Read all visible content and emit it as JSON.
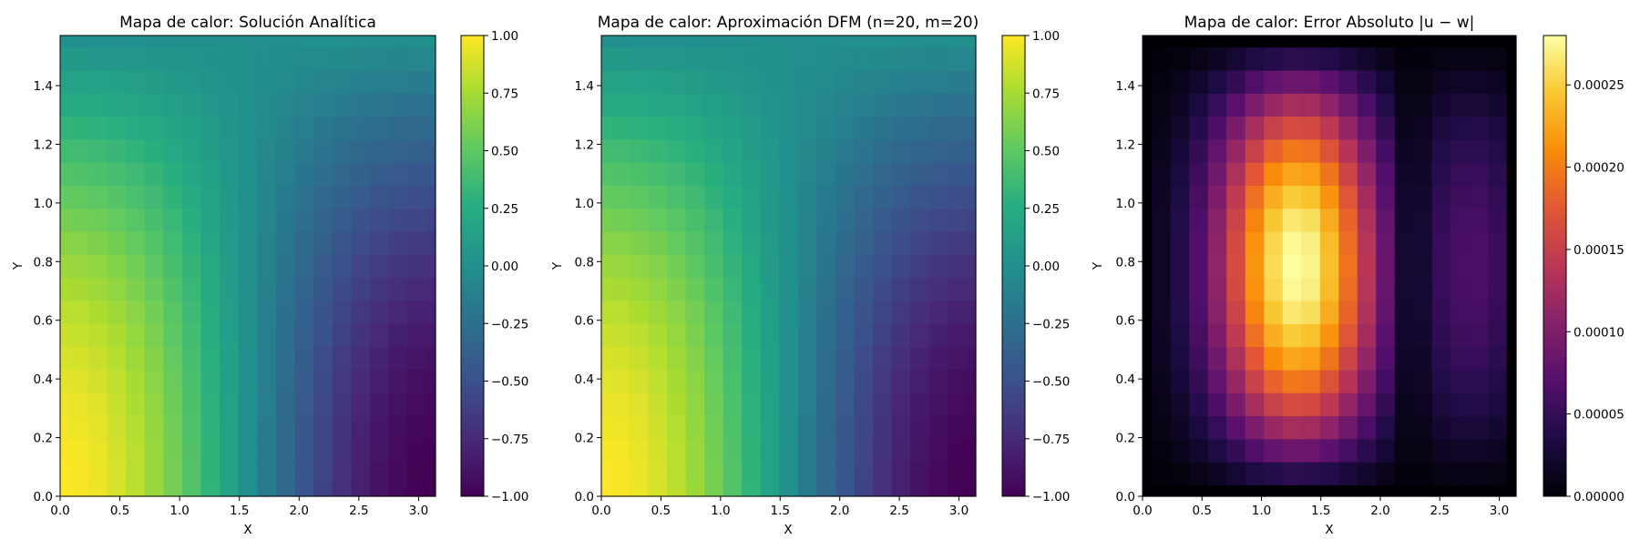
{
  "chart_data": [
    {
      "type": "heatmap",
      "title": "Mapa de calor: Solución Analítica",
      "xlabel": "X",
      "ylabel": "Y",
      "xlim": [
        0,
        3.14159
      ],
      "ylim": [
        0,
        1.5708
      ],
      "x_ticks": [
        "0.0",
        "0.5",
        "1.0",
        "1.5",
        "2.0",
        "2.5",
        "3.0"
      ],
      "y_ticks": [
        "0.0",
        "0.2",
        "0.4",
        "0.6",
        "0.8",
        "1.0",
        "1.2",
        "1.4"
      ],
      "grid_n": 20,
      "grid_m": 20,
      "colormap": "viridis",
      "colorbar": {
        "min": -1.0,
        "max": 1.0,
        "ticks": [
          "-1.00",
          "-0.75",
          "-0.50",
          "-0.25",
          "0.00",
          "0.25",
          "0.50",
          "0.75",
          "1.00"
        ]
      },
      "function": "cos(x)*cos(y)"
    },
    {
      "type": "heatmap",
      "title": "Mapa de calor: Aproximación DFM (n=20, m=20)",
      "xlabel": "X",
      "ylabel": "Y",
      "xlim": [
        0,
        3.14159
      ],
      "ylim": [
        0,
        1.5708
      ],
      "x_ticks": [
        "0.0",
        "0.5",
        "1.0",
        "1.5",
        "2.0",
        "2.5",
        "3.0"
      ],
      "y_ticks": [
        "0.0",
        "0.2",
        "0.4",
        "0.6",
        "0.8",
        "1.0",
        "1.2",
        "1.4"
      ],
      "grid_n": 20,
      "grid_m": 20,
      "colormap": "viridis",
      "colorbar": {
        "min": -1.0,
        "max": 1.0,
        "ticks": [
          "-1.00",
          "-0.75",
          "-0.50",
          "-0.25",
          "0.00",
          "0.25",
          "0.50",
          "0.75",
          "1.00"
        ]
      },
      "function": "cos(x)*cos(y)"
    },
    {
      "type": "heatmap",
      "title": "Mapa de calor: Error Absoluto |u − w|",
      "xlabel": "X",
      "ylabel": "Y",
      "xlim": [
        0,
        3.14159
      ],
      "ylim": [
        0,
        1.5708
      ],
      "x_ticks": [
        "0.0",
        "0.5",
        "1.0",
        "1.5",
        "2.0",
        "2.5",
        "3.0"
      ],
      "y_ticks": [
        "0.0",
        "0.2",
        "0.4",
        "0.6",
        "0.8",
        "1.0",
        "1.2",
        "1.4"
      ],
      "grid_n": 20,
      "grid_m": 20,
      "colormap": "inferno",
      "colorbar": {
        "min": 0.0,
        "max": 0.00028,
        "ticks": [
          "0.00000",
          "0.00005",
          "0.00010",
          "0.00015",
          "0.00020",
          "0.00025"
        ]
      },
      "error_peak": 0.00028,
      "error_peak_x": 1.3,
      "error_peak_y": 0.78
    }
  ]
}
